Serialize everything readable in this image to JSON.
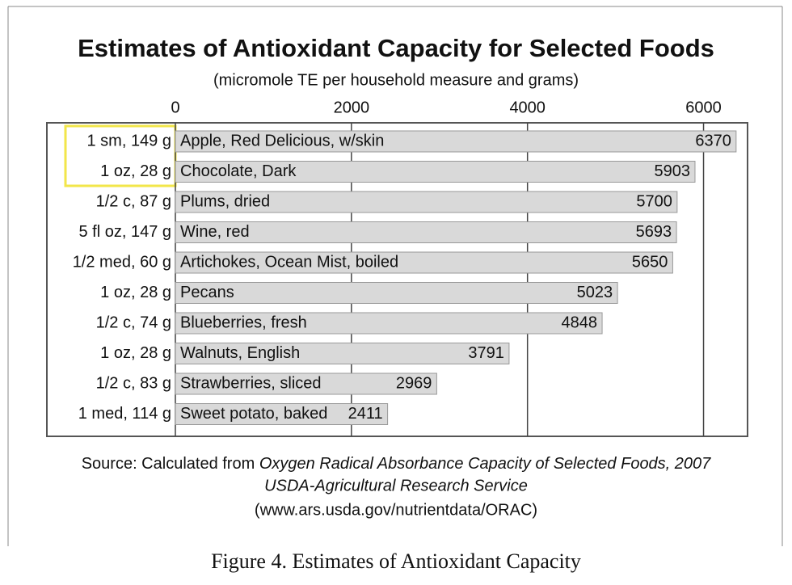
{
  "chart_data": {
    "type": "hbar",
    "title": "Estimates of Antioxidant Capacity for Selected Foods",
    "subtitle": "(micromole TE per household measure and grams)",
    "categories": [
      "Apple, Red Delicious, w/skin",
      "Chocolate, Dark",
      "Plums, dried",
      "Wine, red",
      "Artichokes, Ocean Mist, boiled",
      "Pecans",
      "Blueberries, fresh",
      "Walnuts, English",
      "Strawberries, sliced",
      "Sweet potato, baked"
    ],
    "servings": [
      "1 sm, 149 g",
      "1 oz, 28 g",
      "1/2 c, 87 g",
      "5 fl oz, 147 g",
      "1/2 med, 60 g",
      "1 oz, 28 g",
      "1/2 c, 74 g",
      "1 oz, 28 g",
      "1/2 c, 83 g",
      "1 med, 114 g"
    ],
    "values": [
      6370,
      5903,
      5700,
      5693,
      5650,
      5023,
      4848,
      3791,
      2969,
      2411
    ],
    "color": "#d9d9d9",
    "xlim": [
      0,
      6500
    ],
    "xticks": [
      0,
      2000,
      4000,
      6000
    ],
    "grid": true,
    "source": [
      "Source: Calculated from",
      "Oxygen Radical Absorbance Capacity of Selected Foods, 2007",
      "USDA-Agricultural Research Service",
      "(www.ars.usda.gov/nutrientdata/ORAC)"
    ]
  },
  "caption": "Figure 4. Estimates of Antioxidant Capacity"
}
